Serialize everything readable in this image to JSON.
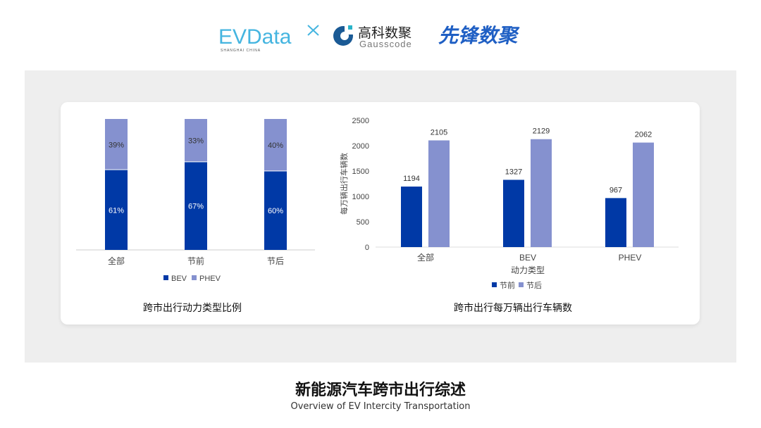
{
  "logos": {
    "evdata": "EVData",
    "evdata_sub": "SHANGHAI CHINA",
    "gauss_cn": "高科数聚",
    "gauss_en": "Gausscode",
    "xianfeng": "先锋数聚"
  },
  "colors": {
    "dark": "#0039a6",
    "light": "#8591cf",
    "background": "#eeeeee"
  },
  "chart_data": [
    {
      "type": "bar",
      "stacked": true,
      "percent": true,
      "categories": [
        "全部",
        "节前",
        "节后"
      ],
      "series": [
        {
          "name": "BEV",
          "values": [
            61,
            67,
            60
          ]
        },
        {
          "name": "PHEV",
          "values": [
            39,
            33,
            40
          ]
        }
      ],
      "data_labels": [
        [
          "61%",
          "67%",
          "60%"
        ],
        [
          "39%",
          "33%",
          "40%"
        ]
      ],
      "title": "跨市出行动力类型比例",
      "legend": "bottom"
    },
    {
      "type": "bar",
      "categories": [
        "全部",
        "BEV",
        "PHEV"
      ],
      "series": [
        {
          "name": "节前",
          "values": [
            1194,
            1327,
            967
          ]
        },
        {
          "name": "节后",
          "values": [
            2105,
            2129,
            2062
          ]
        }
      ],
      "yticks": [
        "0",
        "500",
        "1000",
        "1500",
        "2000",
        "2500"
      ],
      "ylim": [
        0,
        2500
      ],
      "xlabel": "动力类型",
      "ylabel": "每万辆出行车辆数",
      "title": "跨市出行每万辆出行车辆数",
      "legend": "bottom"
    }
  ],
  "page": {
    "title": "新能源汽车跨市出行综述",
    "subtitle": "Overview of EV Intercity Transportation"
  }
}
